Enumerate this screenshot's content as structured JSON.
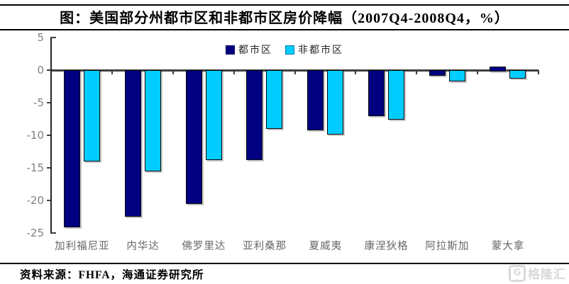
{
  "title": "图：美国部分州都市区和非都市区房价降幅（2007Q4-2008Q4，%）",
  "source": "资料来源：FHFA，海通证券研究所",
  "watermark": {
    "icon": "G",
    "text": "格隆汇"
  },
  "colors": {
    "metro": "#000080",
    "nonmetro": "#00CCFF",
    "axis": "#3f3f3f",
    "tick_label": "#808080",
    "category_label": "#666666",
    "watermark": "#d9d9d9"
  },
  "chart_data": {
    "type": "bar",
    "title": "美国部分州都市区和非都市区房价降幅（2007Q4-2008Q4，%）",
    "categories": [
      "加利福尼亚",
      "内华达",
      "佛罗里达",
      "亚利桑那",
      "夏威夷",
      "康涅狄格",
      "阿拉斯加",
      "蒙大拿"
    ],
    "series": [
      {
        "name": "都市区",
        "color": "#000080",
        "values": [
          -23.9,
          -22.3,
          -20.3,
          -13.6,
          -9.0,
          -6.8,
          -0.7,
          0.6
        ]
      },
      {
        "name": "非都市区",
        "color": "#00CCFF",
        "values": [
          -13.8,
          -15.3,
          -13.6,
          -8.8,
          -9.7,
          -7.4,
          -1.5,
          -1.1
        ]
      }
    ],
    "ylim": [
      -25,
      5
    ],
    "yticks": [
      5,
      0,
      -5,
      -10,
      -15,
      -20,
      -25
    ],
    "ylabel": "",
    "xlabel": "",
    "legend_position": "top",
    "grid": false
  }
}
